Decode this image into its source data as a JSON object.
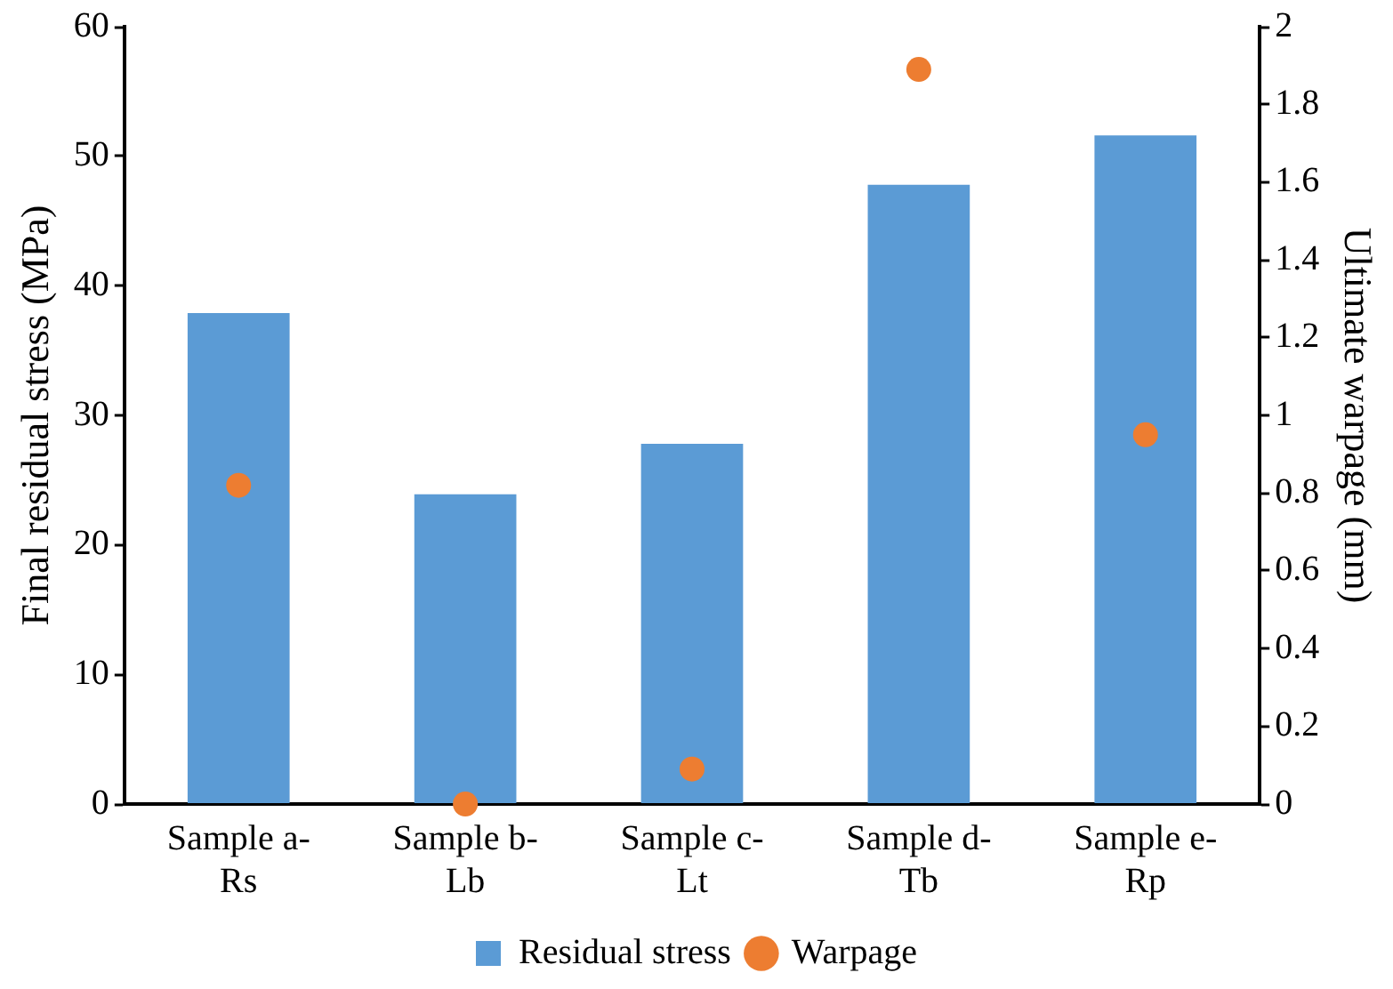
{
  "chart_data": {
    "type": "bar",
    "categories": [
      "Sample a-Rs",
      "Sample b-Lb",
      "Sample c-Lt",
      "Sample d-Tb",
      "Sample e-Rp"
    ],
    "ylabel": "Final residual stress (MPa)",
    "y2label": "Ultimate warpage (mm)",
    "series": [
      {
        "name": "Residual stress",
        "color": "#5b9bd5",
        "values": [
          37.9,
          23.9,
          27.8,
          47.8,
          51.6
        ]
      },
      {
        "name": "Warpage",
        "type": "scatter",
        "axis": "y2",
        "color": "#ed7d31",
        "values": [
          0.82,
          0,
          0.09,
          1.89,
          0.95
        ]
      }
    ],
    "ylim": [
      0,
      60
    ],
    "yticks": [
      0,
      10,
      20,
      30,
      40,
      50,
      60
    ],
    "y2lim": [
      0,
      2
    ],
    "y2ticks": [
      0,
      0.2,
      0.4,
      0.6,
      0.8,
      1,
      1.2,
      1.4,
      1.6,
      1.8,
      2
    ],
    "grid": false,
    "legend": "bottom",
    "marker": "circle"
  }
}
